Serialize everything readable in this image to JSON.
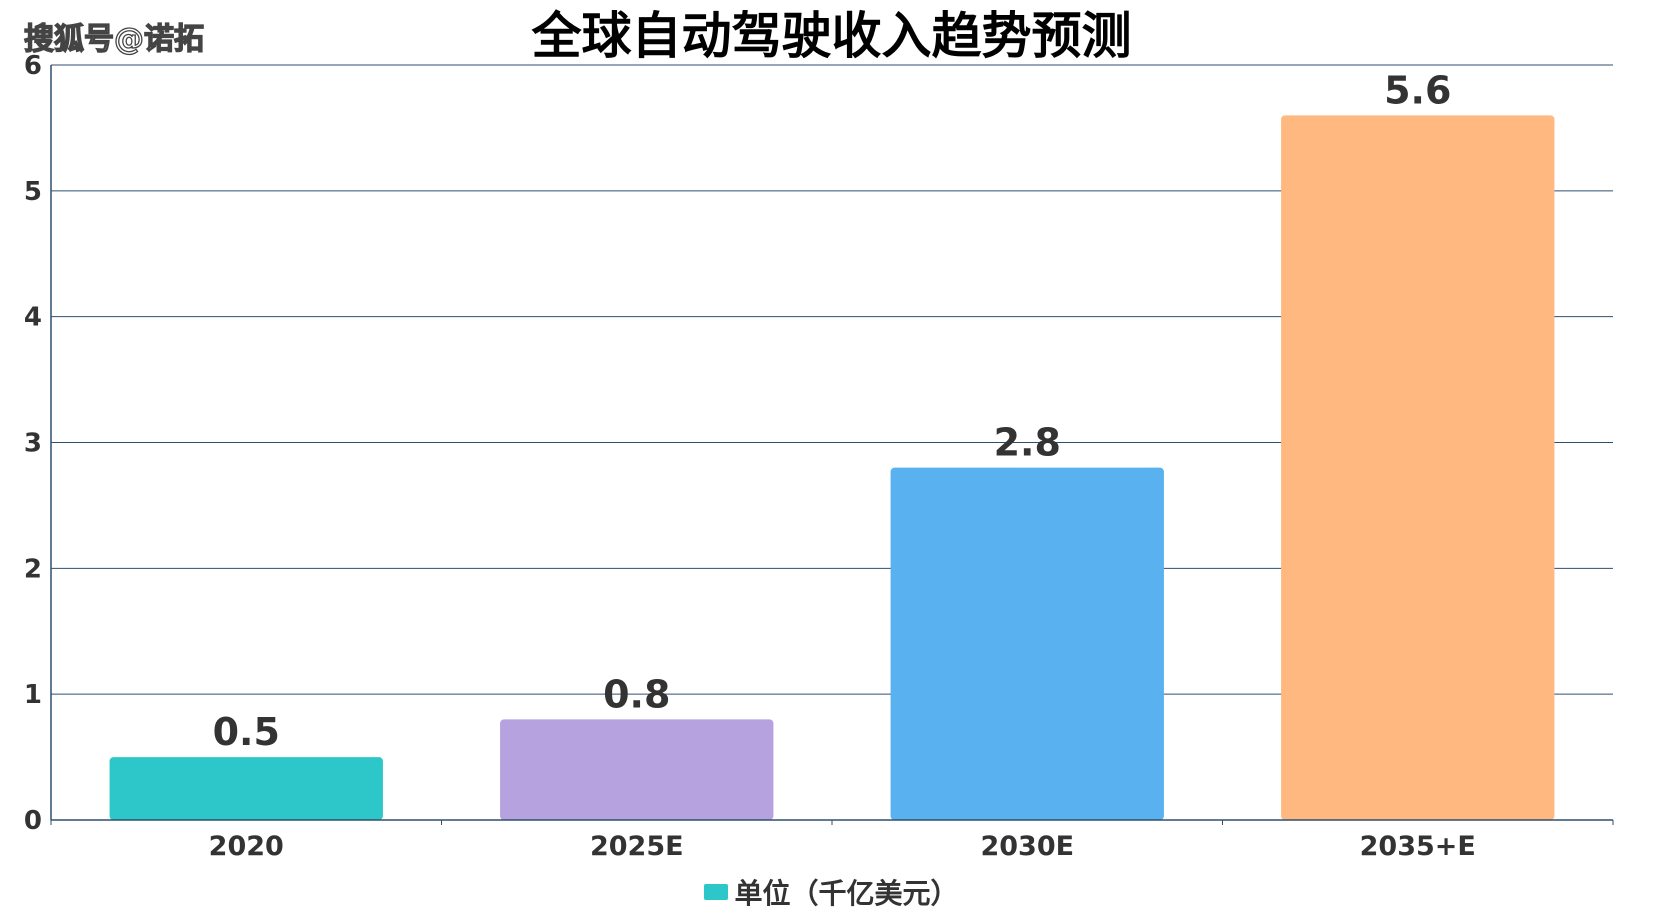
{
  "watermark": "搜狐号@诺拓",
  "chart_data": {
    "type": "bar",
    "title": "全球自动驾驶收入趋势预测",
    "categories": [
      "2020",
      "2025E",
      "2030E",
      "2035+E"
    ],
    "series": [
      {
        "name": "单位（千亿美元）",
        "values": [
          0.5,
          0.8,
          2.8,
          5.6
        ]
      }
    ],
    "data_labels": [
      "0.5",
      "0.8",
      "2.8",
      "5.6"
    ],
    "bar_colors": [
      "#2ec7c9",
      "#b6a2de",
      "#5ab1ef",
      "#ffb980"
    ],
    "ylim": [
      0,
      6
    ],
    "yticks": [
      0,
      1,
      2,
      3,
      4,
      5,
      6
    ],
    "xlabel": "",
    "ylabel": "",
    "grid": true,
    "legend_position": "bottom-center",
    "legend_label": "单位（千亿美元）",
    "legend_color": "#2ec7c9"
  }
}
